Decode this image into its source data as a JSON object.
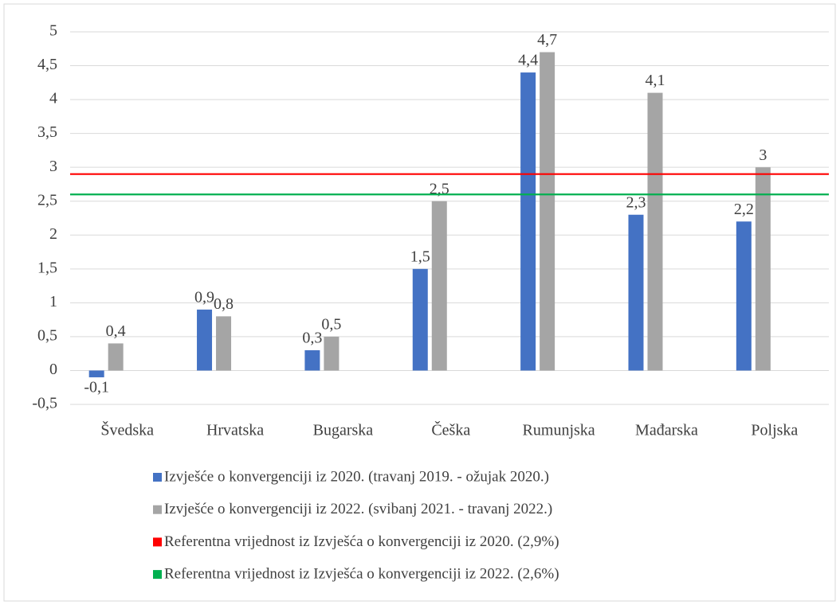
{
  "chart_data": {
    "type": "bar",
    "categories": [
      "Švedska",
      "Hrvatska",
      "Bugarska",
      "Češka",
      "Rumunjska",
      "Mađarska",
      "Poljska"
    ],
    "series": [
      {
        "name": "Izvješće o konvergenciji iz 2020. (travanj 2019. - ožujak 2020.)",
        "color": "#4472c4",
        "values": [
          -0.1,
          0.9,
          0.3,
          1.5,
          4.4,
          2.3,
          2.2
        ],
        "value_labels": [
          "-0,1",
          "0,9",
          "0,3",
          "1,5",
          "4,4",
          "2,3",
          "2,2"
        ]
      },
      {
        "name": "Izvješće o konvergenciji iz 2022. (svibanj 2021. - travanj 2022.)",
        "color": "#a5a5a5",
        "values": [
          0.4,
          0.8,
          0.5,
          2.5,
          4.7,
          4.1,
          3
        ],
        "value_labels": [
          "0,4",
          "0,8",
          "0,5",
          "2,5",
          "4,7",
          "4,1",
          "3"
        ]
      }
    ],
    "reference_lines": [
      {
        "name": "Referentna vrijednost iz Izvješća o konvergenciji iz 2020. (2,9%)",
        "color": "#ff0000",
        "value": 2.9
      },
      {
        "name": "Referentna vrijednost iz Izvješća o konvergenciji iz 2022. (2,6%)",
        "color": "#00b050",
        "value": 2.6
      }
    ],
    "ylim": [
      -0.5,
      5
    ],
    "yticks": [
      {
        "value": -0.5,
        "label": "-0,5"
      },
      0,
      {
        "value": 0.5,
        "label": "0,5"
      },
      1,
      {
        "value": 1.5,
        "label": "1,5"
      },
      2,
      {
        "value": 2.5,
        "label": "2,5"
      },
      3,
      {
        "value": 3.5,
        "label": "3,5"
      },
      4,
      {
        "value": 4.5,
        "label": "4,5"
      },
      5
    ],
    "grid": true,
    "legend": "bottom"
  }
}
